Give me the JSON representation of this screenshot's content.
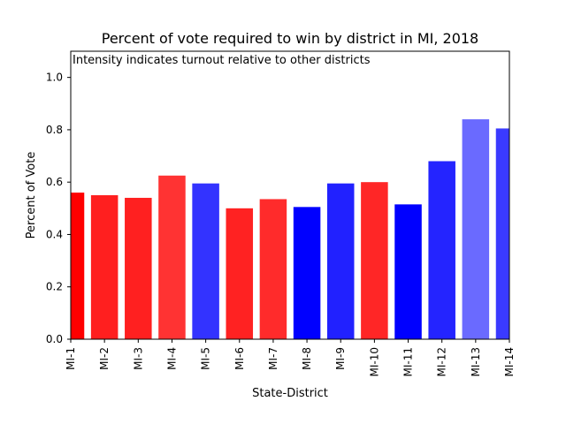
{
  "chart_data": {
    "type": "bar",
    "title": "Percent of vote required to win by district in MI, 2018",
    "annotation": "Intensity indicates turnout relative to other districts",
    "xlabel": "State-District",
    "ylabel": "Percent of Vote",
    "ylim": [
      0,
      1.1
    ],
    "yticks": [
      "0.0",
      "0.2",
      "0.4",
      "0.6",
      "0.8",
      "1.0"
    ],
    "grid": false,
    "categories": [
      "MI-1",
      "MI-2",
      "MI-3",
      "MI-4",
      "MI-5",
      "MI-6",
      "MI-7",
      "MI-8",
      "MI-9",
      "MI-10",
      "MI-11",
      "MI-12",
      "MI-13",
      "MI-14"
    ],
    "values": [
      0.56,
      0.55,
      0.54,
      0.625,
      0.595,
      0.5,
      0.535,
      0.505,
      0.595,
      0.6,
      0.515,
      0.68,
      0.84,
      0.805
    ],
    "colors": [
      "#ff0000",
      "#ff1f1f",
      "#ff2020",
      "#ff3333",
      "#3333ff",
      "#ff2222",
      "#ff2b2b",
      "#0000ff",
      "#2121ff",
      "#ff2626",
      "#0000ff",
      "#2424ff",
      "#6a6aff",
      "#3a3aff"
    ]
  }
}
